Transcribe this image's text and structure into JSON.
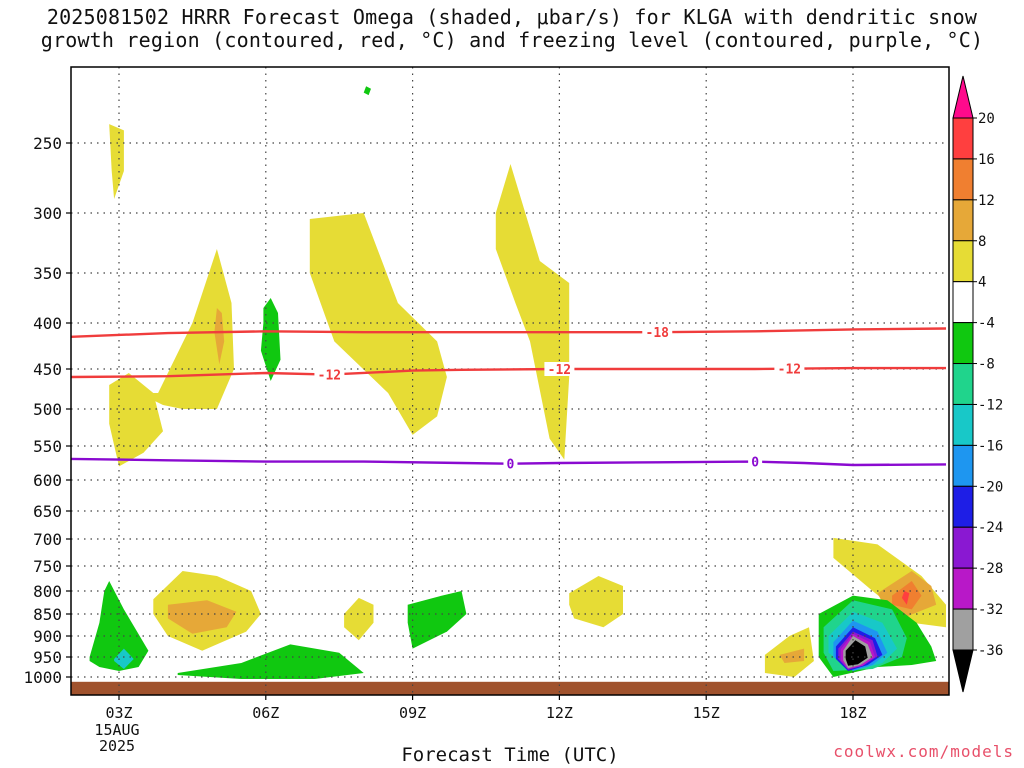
{
  "title": {
    "line1": "2025081502 HRRR Forecast Omega (shaded, μbar/s) for KLGA with dendritic snow",
    "line2": "growth region (contoured, red, °C) and freezing level (contoured, purple, °C)"
  },
  "credit": "coolwx.com/models",
  "chart_data": {
    "type": "area",
    "title": "2025081502 HRRR Forecast Omega (shaded, μbar/s) for KLGA with dendritic snow growth region (contoured, red, °C) and freezing level (contoured, purple, °C)",
    "xlabel": "Forecast Time (UTC)",
    "ylabel": "",
    "x_ticks": [
      {
        "hour": 3,
        "label": "03Z",
        "sub": [
          "15AUG",
          "2025"
        ]
      },
      {
        "hour": 6,
        "label": "06Z"
      },
      {
        "hour": 9,
        "label": "09Z"
      },
      {
        "hour": 12,
        "label": "12Z"
      },
      {
        "hour": 15,
        "label": "15Z"
      },
      {
        "hour": 18,
        "label": "18Z"
      }
    ],
    "xlim_hours": [
      2,
      19.9
    ],
    "y_ticks_hpa": [
      250,
      300,
      350,
      400,
      450,
      500,
      550,
      600,
      650,
      700,
      750,
      800,
      850,
      900,
      950,
      1000
    ],
    "ylim_hpa": [
      200,
      1030
    ],
    "grid": true,
    "colorbar": {
      "labels": [
        "20",
        "16",
        "12",
        "8",
        "4",
        "-4",
        "-8",
        "-12",
        "-16",
        "-20",
        "-24",
        "-28",
        "-32",
        "-36"
      ],
      "colors": [
        "#ff0a8c",
        "#ff3f3f",
        "#f07f30",
        "#e6a838",
        "#e6dc35",
        "#ffffff",
        "#10c810",
        "#20d48c",
        "#18c8c8",
        "#1e96f0",
        "#1e1ee6",
        "#8a18d2",
        "#b818c8",
        "#a0a0a0",
        "#000000"
      ]
    },
    "contours": [
      {
        "name": "-18",
        "color": "#f03c3c",
        "label_hours": [
          14
        ],
        "hours": [
          2,
          4,
          6,
          8,
          10,
          12,
          14,
          16,
          18,
          19.9
        ],
        "hpa": [
          415,
          411,
          409,
          410,
          410,
          410,
          410,
          409,
          407,
          406
        ]
      },
      {
        "name": "-12",
        "color": "#f03c3c",
        "label_hours": [
          7.3,
          12,
          16.7
        ],
        "hours": [
          2,
          4,
          6,
          7.3,
          9,
          10,
          12,
          14,
          16,
          18,
          19.9
        ],
        "hpa": [
          460,
          459,
          455,
          457,
          452,
          451,
          450,
          450,
          450,
          449,
          449
        ]
      },
      {
        "name": "0",
        "color": "#8a0ad0",
        "label_hours": [
          11,
          16
        ],
        "hours": [
          2,
          4,
          6,
          8,
          10,
          11,
          12,
          14,
          16,
          17,
          18,
          19.9
        ],
        "hpa": [
          569,
          571,
          573,
          573,
          575,
          576,
          575,
          574,
          573,
          575,
          578,
          577
        ]
      }
    ],
    "omega_regions": [
      {
        "value": 6,
        "hours": [
          2.8,
          3.1,
          3.1,
          2.9,
          2.85
        ],
        "hpa": [
          235,
          240,
          270,
          290,
          270
        ]
      },
      {
        "value": 6,
        "hours": [
          2.8,
          3.2,
          3.7,
          3.9,
          3.5,
          3.0,
          2.8
        ],
        "hpa": [
          470,
          455,
          480,
          530,
          560,
          580,
          520
        ]
      },
      {
        "value": 6,
        "hours": [
          3.2,
          3.8,
          4.5,
          5.0,
          5.3,
          5.35,
          5.0,
          4.3,
          3.9,
          3.4
        ],
        "hpa": [
          480,
          480,
          400,
          330,
          380,
          450,
          500,
          500,
          495,
          480
        ]
      },
      {
        "value": 10,
        "hours": [
          5.0,
          5.1,
          5.15,
          5.05,
          4.95
        ],
        "hpa": [
          385,
          390,
          420,
          445,
          410
        ]
      },
      {
        "value": -6,
        "hours": [
          5.95,
          6.1,
          6.25,
          6.3,
          6.1,
          5.9,
          5.95
        ],
        "hpa": [
          385,
          375,
          390,
          440,
          465,
          430,
          400
        ]
      },
      {
        "value": 6,
        "hours": [
          6.9,
          8.0,
          8.7,
          9.5,
          9.7,
          9.5,
          9.0,
          8.5,
          7.4,
          6.9
        ],
        "hpa": [
          305,
          300,
          380,
          420,
          460,
          510,
          535,
          480,
          420,
          350
        ]
      },
      {
        "value": 6,
        "hours": [
          10.7,
          11.0,
          11.6,
          12.2,
          12.2,
          12.1,
          11.8,
          11.4,
          11.1,
          10.7
        ],
        "hpa": [
          300,
          265,
          340,
          360,
          460,
          570,
          540,
          420,
          380,
          330
        ]
      },
      {
        "value": 6,
        "hours": [
          3.7,
          4.3,
          5.0,
          5.7,
          5.9,
          5.6,
          4.7,
          4.0,
          3.7
        ],
        "hpa": [
          818,
          760,
          770,
          800,
          850,
          890,
          935,
          900,
          850
        ]
      },
      {
        "value": 10,
        "hours": [
          4.0,
          4.8,
          5.4,
          5.2,
          4.5,
          4.0
        ],
        "hpa": [
          830,
          820,
          845,
          880,
          895,
          860
        ]
      },
      {
        "value": -6,
        "hours": [
          2.4,
          2.6,
          2.7,
          2.8,
          3.1,
          3.6,
          3.4,
          3.0,
          2.6,
          2.4
        ],
        "hpa": [
          950,
          870,
          800,
          780,
          840,
          935,
          975,
          985,
          975,
          960
        ]
      },
      {
        "value": -12,
        "hours": [
          2.9,
          3.1,
          3.3,
          3.1,
          2.9
        ],
        "hpa": [
          955,
          930,
          955,
          980,
          960
        ]
      },
      {
        "value": -6,
        "hours": [
          4.2,
          5.5,
          6.5,
          7.5,
          8.0,
          7.0,
          5.5,
          4.2
        ],
        "hpa": [
          990,
          965,
          920,
          940,
          990,
          1005,
          1005,
          995
        ]
      },
      {
        "value": 6,
        "hours": [
          7.6,
          7.9,
          8.2,
          8.2,
          7.9,
          7.6
        ],
        "hpa": [
          850,
          815,
          830,
          870,
          910,
          880
        ]
      },
      {
        "value": -6,
        "hours": [
          8.9,
          9.6,
          10.0,
          10.1,
          9.7,
          9.0,
          8.9
        ],
        "hpa": [
          830,
          810,
          800,
          850,
          890,
          930,
          870
        ]
      },
      {
        "value": 6,
        "hours": [
          12.2,
          12.8,
          13.3,
          13.3,
          12.9,
          12.3,
          12.2
        ],
        "hpa": [
          805,
          770,
          790,
          850,
          880,
          860,
          830
        ]
      },
      {
        "value": 6,
        "hours": [
          16.2,
          16.7,
          17.1,
          17.2,
          16.8,
          16.2
        ],
        "hpa": [
          945,
          900,
          880,
          960,
          1000,
          990
        ]
      },
      {
        "value": 10,
        "hours": [
          16.5,
          17.0,
          17.0,
          16.6
        ],
        "hpa": [
          945,
          930,
          960,
          965
        ]
      },
      {
        "value": 6,
        "hours": [
          17.6,
          18.5,
          19.4,
          19.9,
          19.9,
          19.2,
          18.4,
          17.6
        ],
        "hpa": [
          698,
          710,
          770,
          830,
          880,
          870,
          800,
          735
        ]
      },
      {
        "value": 10,
        "hours": [
          18.5,
          19.2,
          19.6,
          19.7,
          19.0,
          18.6
        ],
        "hpa": [
          805,
          760,
          790,
          830,
          860,
          825
        ]
      },
      {
        "value": 14,
        "hours": [
          18.8,
          19.2,
          19.4,
          19.2,
          18.8
        ],
        "hpa": [
          810,
          780,
          810,
          840,
          830
        ]
      },
      {
        "value": 18,
        "hours": [
          19.05,
          19.15,
          19.1,
          19.0
        ],
        "hpa": [
          800,
          805,
          830,
          815
        ]
      },
      {
        "value": -6,
        "hours": [
          17.3,
          18.0,
          18.7,
          19.3,
          19.6,
          19.7,
          19.2,
          18.5,
          17.6,
          17.3
        ],
        "hpa": [
          850,
          810,
          820,
          870,
          925,
          960,
          970,
          975,
          1000,
          950
        ]
      },
      {
        "value": -10,
        "hours": [
          17.4,
          18.0,
          18.8,
          19.1,
          19.0,
          18.4,
          17.6,
          17.4
        ],
        "hpa": [
          880,
          820,
          840,
          905,
          950,
          980,
          985,
          940
        ]
      },
      {
        "value": -14,
        "hours": [
          17.5,
          18.0,
          18.6,
          18.9,
          18.6,
          18.0,
          17.5
        ],
        "hpa": [
          900,
          845,
          870,
          930,
          965,
          985,
          940
        ]
      },
      {
        "value": -18,
        "hours": [
          17.6,
          18.0,
          18.5,
          18.7,
          18.4,
          18.0,
          17.6
        ],
        "hpa": [
          915,
          865,
          890,
          940,
          970,
          985,
          950
        ]
      },
      {
        "value": -22,
        "hours": [
          17.65,
          18.0,
          18.45,
          18.6,
          18.3,
          17.9,
          17.65
        ],
        "hpa": [
          925,
          880,
          905,
          945,
          970,
          985,
          955
        ]
      },
      {
        "value": -26,
        "hours": [
          17.7,
          18.0,
          18.4,
          18.5,
          18.2,
          17.9,
          17.7
        ],
        "hpa": [
          930,
          890,
          910,
          948,
          972,
          982,
          955
        ]
      },
      {
        "value": -30,
        "hours": [
          17.75,
          18.0,
          18.35,
          18.45,
          18.2,
          17.9,
          17.75
        ],
        "hpa": [
          932,
          895,
          915,
          950,
          972,
          980,
          958
        ]
      },
      {
        "value": -34,
        "hours": [
          17.8,
          18.0,
          18.3,
          18.4,
          18.15,
          17.9,
          17.8
        ],
        "hpa": [
          935,
          900,
          920,
          950,
          970,
          978,
          958
        ]
      },
      {
        "value": -38,
        "hours": [
          17.85,
          18.05,
          18.25,
          18.3,
          18.1,
          17.9,
          17.85
        ],
        "hpa": [
          935,
          910,
          925,
          952,
          968,
          972,
          955
        ]
      },
      {
        "value": -6,
        "hours": [
          8.05,
          8.15,
          8.1,
          8.0
        ],
        "hpa": [
          205,
          207,
          212,
          210
        ]
      }
    ],
    "ground": {
      "color": "#a0522d",
      "top_hpa": 1012
    }
  }
}
